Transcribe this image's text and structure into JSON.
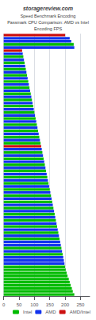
{
  "chart_data": {
    "type": "bar",
    "orientation": "horizontal",
    "title": "storagereview.com",
    "subtitle": [
      "Speed Benchmark Encoding",
      "Passmark CPU Comparison: AMD vs Intel",
      "Encoding FPS"
    ],
    "series": [
      {
        "name": "Intel",
        "color": "#00bb00",
        "values": [
          230,
          225,
          222,
          218,
          215,
          212,
          208,
          205,
          202,
          200,
          null,
          null,
          null,
          192,
          null,
          188,
          null,
          null,
          182,
          null,
          178,
          null,
          174,
          null,
          170,
          null,
          166,
          null,
          162,
          null,
          158,
          null,
          154,
          null,
          150,
          null,
          146,
          null,
          142,
          null,
          138,
          null,
          134,
          null,
          130,
          null,
          126,
          null,
          null,
          120,
          null,
          116,
          null,
          112,
          null,
          108,
          null,
          104,
          null,
          100,
          null,
          96,
          null,
          92,
          null,
          88,
          null,
          84,
          null,
          80,
          null,
          76,
          null,
          72,
          null,
          68,
          null,
          64,
          null,
          null,
          null,
          228,
          null,
          null,
          null
        ]
      },
      {
        "name": "AMD",
        "color": "#1133ee",
        "values": [
          null,
          null,
          null,
          null,
          null,
          null,
          null,
          null,
          null,
          null,
          198,
          196,
          194,
          null,
          190,
          null,
          186,
          184,
          null,
          180,
          null,
          176,
          null,
          172,
          null,
          168,
          null,
          164,
          null,
          160,
          null,
          156,
          null,
          152,
          null,
          148,
          null,
          144,
          null,
          140,
          null,
          136,
          null,
          132,
          null,
          128,
          null,
          124,
          null,
          null,
          118,
          null,
          114,
          null,
          110,
          null,
          106,
          null,
          102,
          null,
          98,
          null,
          94,
          null,
          90,
          null,
          86,
          null,
          82,
          null,
          78,
          null,
          74,
          null,
          70,
          null,
          66,
          null,
          62,
          null,
          230,
          null,
          220,
          215,
          null
        ]
      },
      {
        "name": "AMD/Intel",
        "color": "#cc1111",
        "values": [
          null,
          null,
          null,
          null,
          null,
          null,
          null,
          null,
          null,
          null,
          null,
          null,
          null,
          null,
          null,
          null,
          null,
          null,
          null,
          null,
          null,
          null,
          null,
          null,
          null,
          null,
          null,
          null,
          null,
          null,
          null,
          null,
          null,
          null,
          null,
          null,
          null,
          null,
          null,
          null,
          null,
          null,
          null,
          null,
          null,
          null,
          null,
          null,
          122,
          null,
          null,
          null,
          null,
          null,
          null,
          null,
          null,
          null,
          null,
          null,
          null,
          null,
          null,
          null,
          null,
          null,
          null,
          null,
          null,
          null,
          null,
          null,
          null,
          null,
          null,
          null,
          null,
          null,
          null,
          60,
          null,
          null,
          null,
          null,
          200
        ]
      }
    ],
    "xlim": [
      0,
      280
    ],
    "xticks": [
      0,
      50,
      100,
      150,
      200,
      250
    ],
    "grid": true,
    "legend": "lower right",
    "tick_labels": "x"
  }
}
